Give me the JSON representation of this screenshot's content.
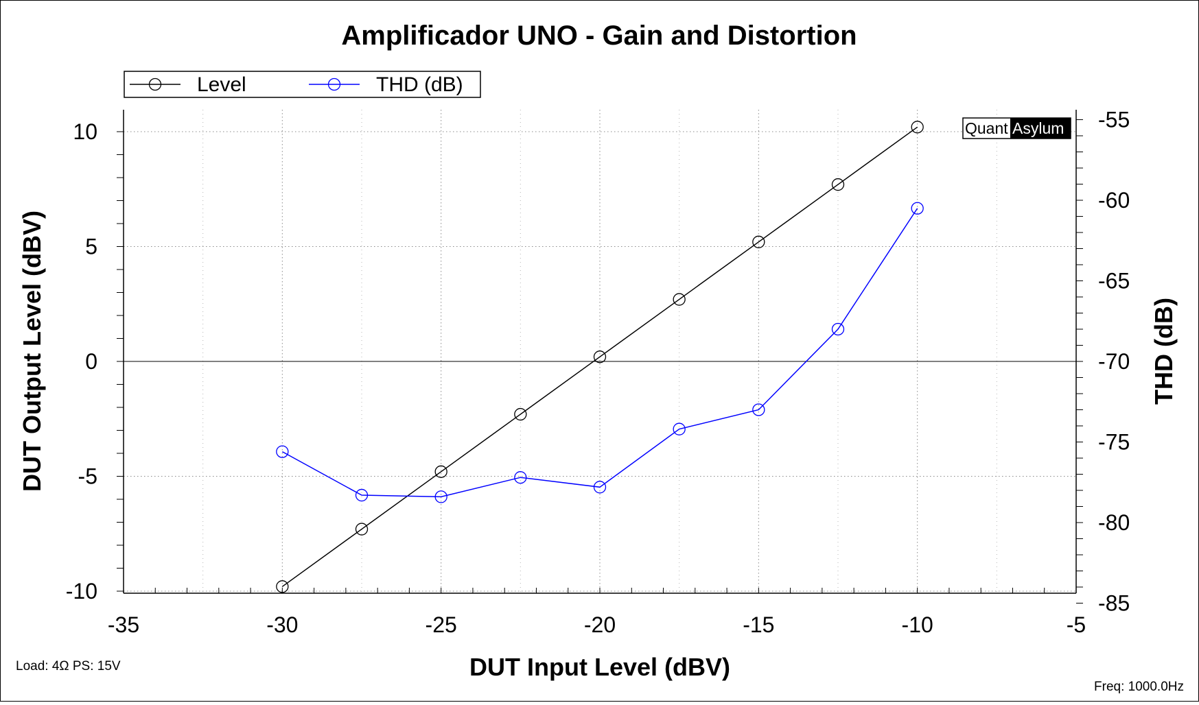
{
  "chart_data": {
    "type": "line",
    "title": "Amplificador UNO - Gain and Distortion",
    "xlabel": "DUT Input Level (dBV)",
    "ylabel": "DUT Output Level (dBV)",
    "y2label": "THD (dB)",
    "xlim": [
      -35,
      -5
    ],
    "ylim": [
      -10,
      11
    ],
    "y2lim": [
      -85,
      -55
    ],
    "xticks": [
      "-35",
      "-30",
      "-25",
      "-20",
      "-15",
      "-10",
      "-5"
    ],
    "yticks": [
      "-10",
      "-5",
      "0",
      "5",
      "10"
    ],
    "y2ticks": [
      "-85",
      "-80",
      "-75",
      "-70",
      "-65",
      "-60",
      "-55"
    ],
    "grid": true,
    "legend_position": "top-left",
    "x": [
      -30,
      -27.5,
      -25,
      -22.5,
      -20,
      -17.5,
      -15,
      -12.5,
      -10
    ],
    "series": [
      {
        "name": "Level",
        "axis": "left",
        "color": "#000000",
        "values": [
          -9.8,
          -7.3,
          -4.8,
          -2.3,
          0.2,
          2.7,
          5.2,
          7.7,
          10.2
        ]
      },
      {
        "name": "THD (dB)",
        "axis": "right",
        "color": "#0000ff",
        "values": [
          -75.6,
          -78.3,
          -78.4,
          -77.2,
          -77.8,
          -74.2,
          -73.0,
          -68.0,
          -60.5
        ]
      }
    ]
  },
  "brand": {
    "left": "Quant",
    "right": "Asylum"
  },
  "notes": {
    "load": "Load: 4Ω PS: 15V",
    "freq": "Freq: 1000.0Hz"
  }
}
